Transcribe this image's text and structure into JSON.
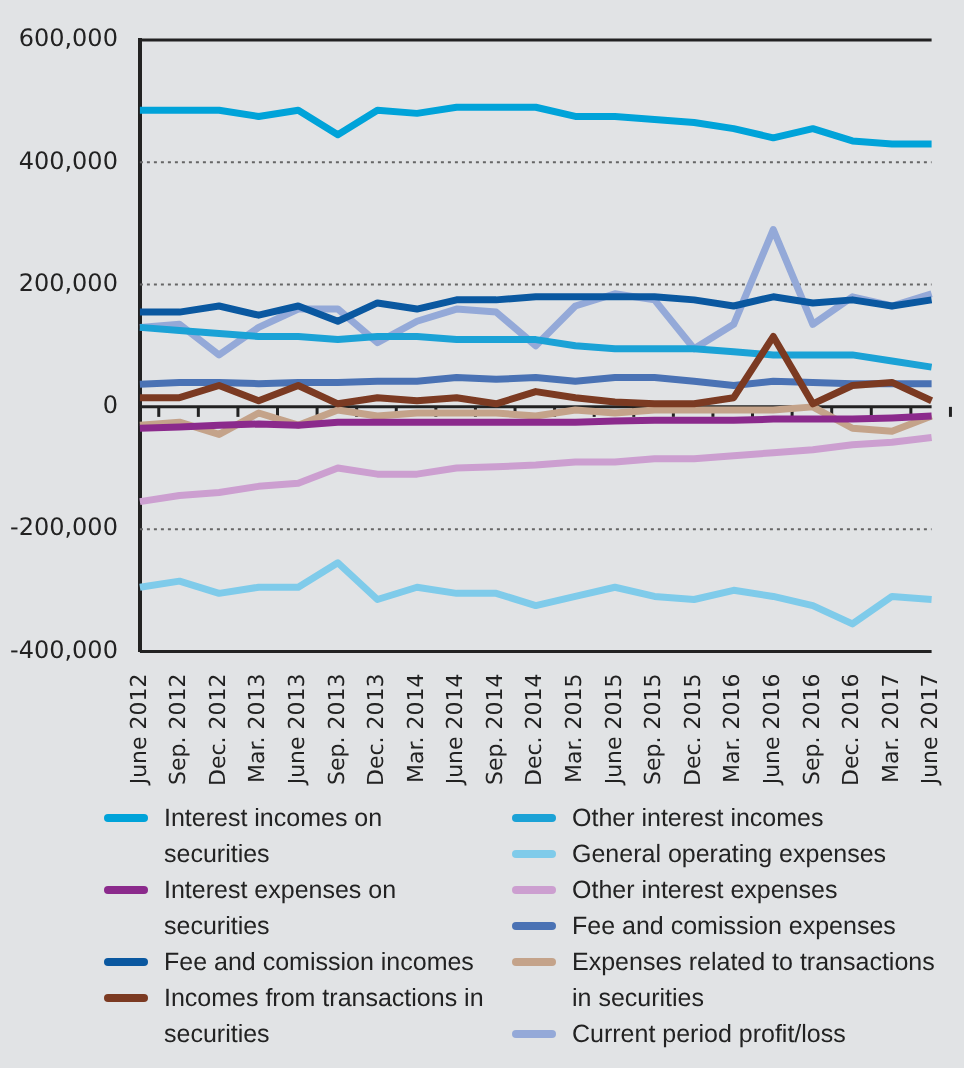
{
  "chart_data": {
    "type": "line",
    "categories": [
      "June 2012",
      "Sep. 2012",
      "Dec. 2012",
      "Mar. 2013",
      "June 2013",
      "Sep. 2013",
      "Dec. 2013",
      "Mar. 2014",
      "June 2014",
      "Sep. 2014",
      "Dec. 2014",
      "Mar. 2015",
      "June 2015",
      "Sep. 2015",
      "Dec. 2015",
      "Mar. 2016",
      "June 2016",
      "Sep. 2016",
      "Dec. 2016",
      "Mar. 2017",
      "June 2017"
    ],
    "ylim": [
      -400000,
      600000
    ],
    "yticks": [
      {
        "value": -400000,
        "label": "-400,000"
      },
      {
        "value": -200000,
        "label": "-200,000"
      },
      0,
      {
        "value": 200000,
        "label": "200,000"
      },
      {
        "value": 400000,
        "label": "400,000"
      },
      {
        "value": 600000,
        "label": "600,000"
      }
    ],
    "grid": "y",
    "legend": "bottom",
    "marker": "none",
    "line_style": "solid",
    "series": [
      {
        "name": "Interest incomes on securities",
        "color": "#00a3d9",
        "values": [
          485000,
          485000,
          485000,
          475000,
          485000,
          445000,
          485000,
          480000,
          490000,
          490000,
          490000,
          475000,
          475000,
          470000,
          465000,
          455000,
          440000,
          455000,
          435000,
          430000,
          430000
        ]
      },
      {
        "name": "Interest expenses on securities",
        "color": "#8b2a8c",
        "values": [
          -35000,
          -33000,
          -30000,
          -28000,
          -30000,
          -25000,
          -25000,
          -25000,
          -25000,
          -25000,
          -25000,
          -25000,
          -23000,
          -22000,
          -22000,
          -22000,
          -20000,
          -20000,
          -20000,
          -18000,
          -15000
        ]
      },
      {
        "name": "Fee and comission incomes",
        "color": "#0a58a0",
        "values": [
          155000,
          155000,
          165000,
          150000,
          165000,
          140000,
          170000,
          160000,
          175000,
          175000,
          180000,
          180000,
          180000,
          180000,
          175000,
          165000,
          180000,
          170000,
          175000,
          165000,
          175000
        ]
      },
      {
        "name": "Incomes from transactions in securities",
        "color": "#7b3a22",
        "values": [
          15000,
          15000,
          35000,
          10000,
          35000,
          5000,
          15000,
          10000,
          15000,
          5000,
          25000,
          15000,
          8000,
          5000,
          5000,
          15000,
          115000,
          5000,
          35000,
          40000,
          10000
        ]
      },
      {
        "name": "Other interest incomes",
        "color": "#1ba2d6",
        "values": [
          130000,
          125000,
          120000,
          115000,
          115000,
          110000,
          115000,
          115000,
          110000,
          110000,
          110000,
          100000,
          95000,
          95000,
          95000,
          90000,
          85000,
          85000,
          85000,
          75000,
          65000
        ]
      },
      {
        "name": "General operating expenses",
        "color": "#7fcbea",
        "values": [
          -295000,
          -285000,
          -305000,
          -295000,
          -295000,
          -255000,
          -315000,
          -295000,
          -305000,
          -305000,
          -325000,
          -310000,
          -295000,
          -310000,
          -315000,
          -300000,
          -310000,
          -325000,
          -355000,
          -310000,
          -315000
        ]
      },
      {
        "name": "Other interest expenses",
        "color": "#cc9fd0",
        "values": [
          -155000,
          -145000,
          -140000,
          -130000,
          -125000,
          -100000,
          -110000,
          -110000,
          -100000,
          -98000,
          -95000,
          -90000,
          -90000,
          -85000,
          -85000,
          -80000,
          -75000,
          -70000,
          -62000,
          -58000,
          -50000
        ]
      },
      {
        "name": "Fee and comission expenses",
        "color": "#4a72b4",
        "values": [
          37000,
          40000,
          40000,
          38000,
          40000,
          40000,
          42000,
          42000,
          48000,
          45000,
          48000,
          42000,
          48000,
          48000,
          42000,
          35000,
          42000,
          40000,
          38000,
          38000,
          38000
        ]
      },
      {
        "name": "Expenses related to transactions in securities",
        "color": "#c4a38a",
        "values": [
          -30000,
          -25000,
          -45000,
          -10000,
          -30000,
          -5000,
          -15000,
          -10000,
          -10000,
          -10000,
          -15000,
          -5000,
          -10000,
          -5000,
          -5000,
          -5000,
          -5000,
          0,
          -35000,
          -40000,
          -15000
        ]
      },
      {
        "name": "Current period profit/loss",
        "color": "#94a9d8",
        "values": [
          130000,
          135000,
          85000,
          130000,
          160000,
          160000,
          105000,
          140000,
          160000,
          155000,
          100000,
          165000,
          185000,
          175000,
          95000,
          135000,
          290000,
          135000,
          180000,
          165000,
          185000
        ]
      }
    ]
  }
}
